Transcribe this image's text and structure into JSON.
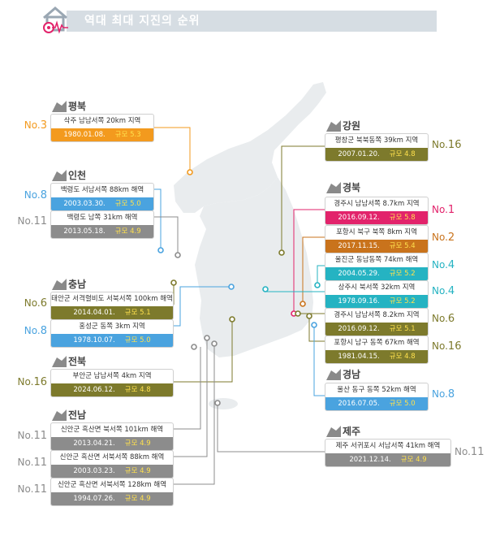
{
  "title": "역대 최대 지진의 순위",
  "colors": {
    "orange": "#f39a1e",
    "blue": "#4aa3df",
    "gray": "#8c8c8c",
    "olive": "#7d7a2c",
    "magenta": "#e2236b",
    "brown": "#c9731c",
    "teal": "#25b3c2",
    "rank_gray": "#8c8c8c"
  },
  "regions": {
    "pyeongbuk": "평북",
    "incheon": "인천",
    "chungnam": "충남",
    "jeonbuk": "전북",
    "jeonnam": "전남",
    "gangwon": "강원",
    "gyeongbuk": "경북",
    "gyeongnam": "경남",
    "jeju": "제주"
  },
  "earthquakes": [
    {
      "id": "q1",
      "rank_prefix": "No.",
      "rank": "3",
      "location": "삭주 남남서쪽 20km 지역",
      "date": "1980.01.08.",
      "magnitude": "규모 5.3",
      "color": "orange"
    },
    {
      "id": "q2",
      "rank_prefix": "No.",
      "rank": "8",
      "location": "백령도 서남서쪽 88km 해역",
      "date": "2003.03.30.",
      "magnitude": "규모 5.0",
      "color": "blue"
    },
    {
      "id": "q3",
      "rank_prefix": "No.",
      "rank": "11",
      "location": "백령도 남쪽 31km 해역",
      "date": "2013.05.18.",
      "magnitude": "규모 4.9",
      "color": "gray"
    },
    {
      "id": "q4",
      "rank_prefix": "No.",
      "rank": "6",
      "location": "태안군 서격렬비도 서북서쪽 100km 해역",
      "date": "2014.04.01.",
      "magnitude": "규모 5.1",
      "color": "olive"
    },
    {
      "id": "q5",
      "rank_prefix": "No.",
      "rank": "8",
      "location": "홍성군 동쪽 3km 지역",
      "date": "1978.10.07.",
      "magnitude": "규모 5.0",
      "color": "blue"
    },
    {
      "id": "q6",
      "rank_prefix": "No.",
      "rank": "16",
      "location": "부안군 남남서쪽 4km 지역",
      "date": "2024.06.12.",
      "magnitude": "규모 4.8",
      "color": "olive"
    },
    {
      "id": "q7",
      "rank_prefix": "No.",
      "rank": "11",
      "location": "신안군 흑산면 북서쪽 101km 해역",
      "date": "2013.04.21.",
      "magnitude": "규모 4.9",
      "color": "gray"
    },
    {
      "id": "q8",
      "rank_prefix": "No.",
      "rank": "11",
      "location": "신안군 흑산면 서북서쪽 88km 해역",
      "date": "2003.03.23.",
      "magnitude": "규모 4.9",
      "color": "gray"
    },
    {
      "id": "q9",
      "rank_prefix": "No.",
      "rank": "11",
      "location": "신안군 흑산면 서북서쪽 128km 해역",
      "date": "1994.07.26.",
      "magnitude": "규모 4.9",
      "color": "gray"
    },
    {
      "id": "q10",
      "rank_prefix": "No.",
      "rank": "16",
      "location": "평창군 북북동쪽 39km 지역",
      "date": "2007.01.20.",
      "magnitude": "규모 4.8",
      "color": "olive"
    },
    {
      "id": "q11",
      "rank_prefix": "No.",
      "rank": "1",
      "location": "경주시 남남서쪽 8.7km 지역",
      "date": "2016.09.12.",
      "magnitude": "규모 5.8",
      "color": "magenta"
    },
    {
      "id": "q12",
      "rank_prefix": "No.",
      "rank": "2",
      "location": "포항시 북구 북쪽 8km 지역",
      "date": "2017.11.15.",
      "magnitude": "규모 5.4",
      "color": "brown"
    },
    {
      "id": "q13",
      "rank_prefix": "No.",
      "rank": "4",
      "location": "울진군 동남동쪽 74km 해역",
      "date": "2004.05.29.",
      "magnitude": "규모 5.2",
      "color": "teal"
    },
    {
      "id": "q14",
      "rank_prefix": "No.",
      "rank": "4",
      "location": "상주시 북서쪽 32km 지역",
      "date": "1978.09.16.",
      "magnitude": "규모 5.2",
      "color": "teal"
    },
    {
      "id": "q15",
      "rank_prefix": "No.",
      "rank": "6",
      "location": "경주시 남남서쪽 8.2km 지역",
      "date": "2016.09.12.",
      "magnitude": "규모 5.1",
      "color": "olive"
    },
    {
      "id": "q16",
      "rank_prefix": "No.",
      "rank": "16",
      "location": "포항시 남구 동쪽 67km 해역",
      "date": "1981.04.15.",
      "magnitude": "규모 4.8",
      "color": "olive"
    },
    {
      "id": "q17",
      "rank_prefix": "No.",
      "rank": "8",
      "location": "울산 동구 동쪽 52km 해역",
      "date": "2016.07.05.",
      "magnitude": "규모 5.0",
      "color": "blue"
    },
    {
      "id": "q18",
      "rank_prefix": "No.",
      "rank": "11",
      "location": "제주 서귀포시 서남서쪽 41km 해역",
      "date": "2021.12.14.",
      "magnitude": "규모 4.9",
      "color": "gray"
    }
  ]
}
